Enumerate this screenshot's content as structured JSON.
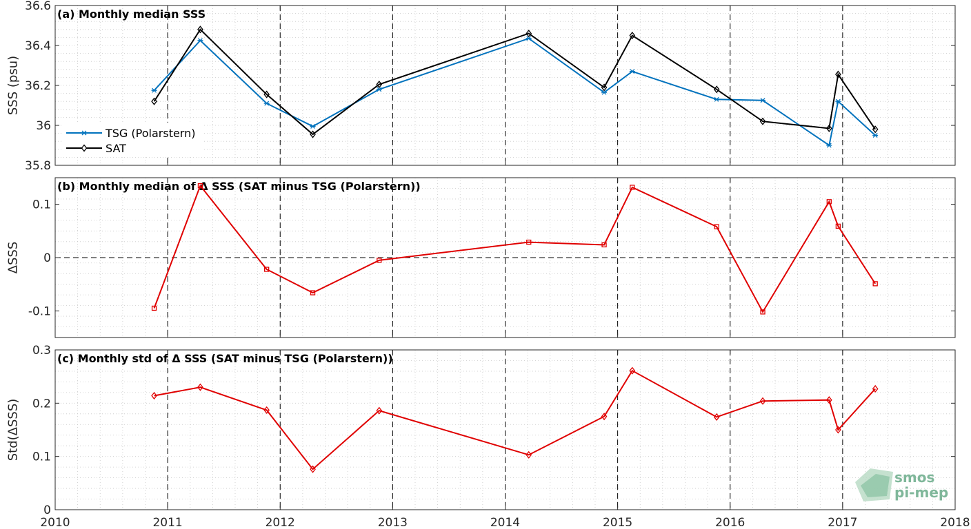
{
  "chart_data": [
    {
      "type": "line",
      "title": "(a) Monthly median SSS",
      "xlabel": "",
      "ylabel": "SSS (psu)",
      "xlim": [
        2010,
        2018
      ],
      "ylim": [
        35.8,
        36.6
      ],
      "xticks": [
        "2010",
        "2011",
        "2012",
        "2013",
        "2014",
        "2015",
        "2016",
        "2017",
        "2018"
      ],
      "yticks": [
        "35.8",
        "36",
        "36.2",
        "36.4",
        "36.6"
      ],
      "grid": "minor dotted",
      "legend": "lower-left",
      "x": [
        2010.88,
        2011.29,
        2011.88,
        2012.29,
        2012.88,
        2014.21,
        2014.88,
        2015.13,
        2015.88,
        2016.29,
        2016.88,
        2016.96,
        2017.29
      ],
      "series": [
        {
          "name": "TSG (Polarstern)",
          "color": "#0072bd",
          "marker": "asterisk",
          "values": [
            36.175,
            36.425,
            36.11,
            35.995,
            36.18,
            36.435,
            36.165,
            36.27,
            36.13,
            36.125,
            35.9,
            36.12,
            35.95
          ]
        },
        {
          "name": "SAT",
          "color": "#000000",
          "marker": "diamond",
          "values": [
            36.12,
            36.48,
            36.155,
            35.955,
            36.205,
            36.46,
            36.19,
            36.45,
            36.18,
            36.02,
            35.985,
            36.255,
            35.98
          ]
        }
      ]
    },
    {
      "type": "line",
      "title": "(b) Monthly median of Δ SSS (SAT minus TSG (Polarstern))",
      "xlabel": "",
      "ylabel": "ΔSSS",
      "xlim": [
        2010,
        2018
      ],
      "ylim": [
        -0.15,
        0.15
      ],
      "xticks": [
        "2010",
        "2011",
        "2012",
        "2013",
        "2014",
        "2015",
        "2016",
        "2017",
        "2018"
      ],
      "yticks": [
        "-0.1",
        "0",
        "0.1"
      ],
      "grid": "minor dotted",
      "legend": "none",
      "x": [
        2010.88,
        2011.29,
        2011.88,
        2012.29,
        2012.88,
        2014.21,
        2014.88,
        2015.13,
        2015.88,
        2016.29,
        2016.88,
        2016.96,
        2017.29
      ],
      "series": [
        {
          "name": "",
          "color": "#e00000",
          "marker": "square",
          "values": [
            -0.095,
            0.135,
            -0.022,
            -0.066,
            -0.005,
            0.029,
            0.024,
            0.132,
            0.058,
            -0.102,
            0.105,
            0.059,
            -0.049
          ]
        }
      ]
    },
    {
      "type": "line",
      "title": "(c) Monthly std of Δ SSS (SAT minus TSG (Polarstern))",
      "xlabel": "",
      "ylabel": "Std(ΔSSS)",
      "xlim": [
        2010,
        2018
      ],
      "ylim": [
        0,
        0.3
      ],
      "xticks": [
        "2010",
        "2011",
        "2012",
        "2013",
        "2014",
        "2015",
        "2016",
        "2017",
        "2018"
      ],
      "yticks": [
        "0",
        "0.1",
        "0.2",
        "0.3"
      ],
      "grid": "minor dotted",
      "legend": "none",
      "x": [
        2010.88,
        2011.29,
        2011.88,
        2012.29,
        2012.88,
        2014.21,
        2014.88,
        2015.13,
        2015.88,
        2016.29,
        2016.88,
        2016.96,
        2017.29
      ],
      "series": [
        {
          "name": "",
          "color": "#e00000",
          "marker": "diamond",
          "values": [
            0.214,
            0.23,
            0.187,
            0.076,
            0.186,
            0.103,
            0.175,
            0.261,
            0.174,
            0.204,
            0.206,
            0.15,
            0.227
          ]
        }
      ]
    }
  ],
  "logo": {
    "line1": "smos",
    "line2": "pi-mep",
    "color": "#7fb79a"
  }
}
